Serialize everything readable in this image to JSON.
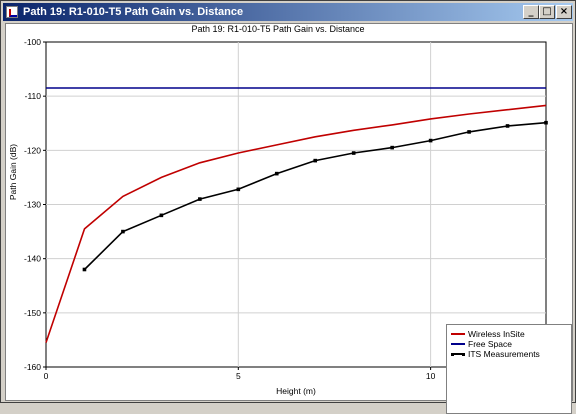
{
  "window": {
    "title": "Path 19: R1-010-T5  Path Gain vs. Distance",
    "controls": {
      "minimize": "_",
      "maximize": "□",
      "close": "×"
    }
  },
  "chart_data": {
    "type": "line",
    "title": "Path 19: R1-010-T5  Path Gain vs. Distance",
    "xlabel": "Height (m)",
    "ylabel": "Path Gain (dB)",
    "xlim": [
      0,
      13
    ],
    "ylim": [
      -160,
      -100
    ],
    "xticks": [
      0,
      5,
      10
    ],
    "yticks": [
      -100,
      -110,
      -120,
      -130,
      -140,
      -150,
      -160
    ],
    "legend": "bottom-right",
    "series": [
      {
        "name": "Wireless InSite",
        "color": "#c00000",
        "x": [
          0,
          1,
          2,
          3,
          4,
          5,
          6,
          7,
          8,
          9,
          10,
          11,
          12,
          13
        ],
        "y": [
          -155.5,
          -134.5,
          -128.5,
          -125,
          -122.3,
          -120.5,
          -119,
          -117.5,
          -116.3,
          -115.3,
          -114.2,
          -113.3,
          -112.5,
          -111.7
        ]
      },
      {
        "name": "Free Space",
        "color": "#00008b",
        "x": [
          0,
          13
        ],
        "y": [
          -108.5,
          -108.5
        ]
      },
      {
        "name": "ITS Measurements",
        "color": "#000000",
        "markers": true,
        "x": [
          1,
          2,
          3,
          4,
          5,
          6,
          7,
          8,
          9,
          10,
          11,
          12,
          13
        ],
        "y": [
          -142,
          -135,
          -132,
          -129,
          -127.2,
          -124.3,
          -121.9,
          -120.5,
          -119.5,
          -118.2,
          -116.6,
          -115.5,
          -114.9
        ]
      }
    ]
  }
}
